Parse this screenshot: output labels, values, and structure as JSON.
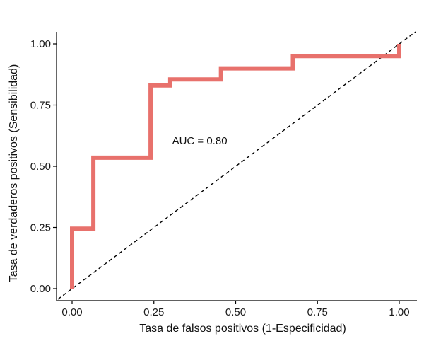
{
  "chart_data": {
    "type": "line",
    "title": "",
    "xlabel": "Tasa de falsos positivos (1-Especificidad)",
    "ylabel": "Tasa de verdaderos positivos (Sensibilidad)",
    "xlim": [
      0,
      1
    ],
    "ylim": [
      0,
      1
    ],
    "x_ticks": [
      0,
      0.25,
      0.5,
      0.75,
      1
    ],
    "x_tick_labels": [
      "0.00",
      "0.25",
      "0.50",
      "0.75",
      "1.00"
    ],
    "y_ticks": [
      0,
      0.25,
      0.5,
      0.75,
      1
    ],
    "y_tick_labels": [
      "0.00",
      "0.25",
      "0.50",
      "0.75",
      "1.00"
    ],
    "grid": false,
    "annotation": {
      "text": "AUC = 0.80",
      "x": 0.39,
      "y": 0.59
    },
    "reference_line": {
      "style": "dashed",
      "color": "#000000",
      "from": [
        0,
        0
      ],
      "to": [
        1,
        1
      ]
    },
    "series": [
      {
        "color": "#e8716c",
        "x": [
          0,
          0,
          0.065,
          0.065,
          0.24,
          0.24,
          0.3,
          0.3,
          0.455,
          0.455,
          0.675,
          0.675,
          1,
          1
        ],
        "y": [
          0,
          0.245,
          0.245,
          0.535,
          0.535,
          0.83,
          0.83,
          0.855,
          0.855,
          0.9,
          0.9,
          0.95,
          0.95,
          1
        ]
      }
    ]
  }
}
